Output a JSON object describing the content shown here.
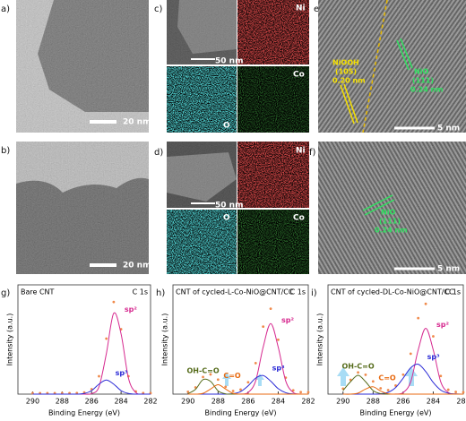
{
  "panels": [
    {
      "label": "a)",
      "scale": "20 nm"
    },
    {
      "label": "b)",
      "scale": "20 nm"
    },
    {
      "label": "c)",
      "scale": "50 nm",
      "maps": [
        "Ni",
        "O",
        "Co"
      ]
    },
    {
      "label": "d)",
      "scale": "50 nm",
      "maps": [
        "Ni",
        "O",
        "Co"
      ]
    },
    {
      "label": "e)",
      "scale": "5 nm",
      "notes": [
        "NiOOH",
        "(105)",
        "0.20 nm",
        "NiO",
        "(111)",
        "0.24 nm"
      ]
    },
    {
      "label": "f)",
      "scale": "5 nm",
      "notes": [
        "NiO",
        "(111)",
        "0.24 nm"
      ]
    }
  ],
  "chart_data": [
    {
      "type": "line",
      "label": "g)",
      "title": "Bare CNT",
      "subtitle": "C 1s",
      "x_label": "Binding Energy (eV)",
      "y_label": "Intensity (a.u.)",
      "xlim": [
        291,
        282
      ],
      "xticks": [
        290,
        288,
        286,
        284,
        282
      ],
      "ylim": [
        0,
        100
      ],
      "x": [
        290,
        289.5,
        289,
        288.5,
        288,
        287.5,
        287,
        286.5,
        286,
        285.5,
        285,
        284.5,
        284,
        283.5,
        283,
        282.5,
        282
      ],
      "series": [
        {
          "color": "#f08a4b",
          "values": [
            1,
            1,
            1,
            1,
            1,
            1,
            1.2,
            1.8,
            5.2,
            19,
            59,
            98,
            69,
            19,
            2.8,
            1.2,
            1
          ]
        },
        {
          "name": "sp²",
          "color": "#d6298f",
          "values": [
            0,
            0,
            0,
            0,
            0,
            0,
            0,
            0,
            0.5,
            7.8,
            43,
            86,
            64,
            17,
            1.7,
            0.1,
            0
          ]
        },
        {
          "name": "sp³",
          "color": "#2b2bd6",
          "values": [
            0,
            0,
            0,
            0,
            0,
            0,
            0,
            0.7,
            3.7,
            10.6,
            15,
            10.6,
            3.7,
            0.7,
            0,
            0,
            0
          ]
        }
      ]
    },
    {
      "type": "line",
      "label": "h)",
      "title": "CNT of cycled-L-Co-NiO@CNT/CC",
      "subtitle": "C 1s",
      "x_label": "Binding Energy (eV)",
      "y_label": "Intensity (a.u.)",
      "xlim": [
        291,
        282
      ],
      "xticks": [
        290,
        288,
        286,
        284,
        282
      ],
      "ylim": [
        0,
        100
      ],
      "x": [
        290,
        289.5,
        289,
        288.5,
        288,
        287.5,
        287,
        286.5,
        286,
        285.5,
        285,
        284.5,
        284,
        283.5,
        283,
        282.5,
        282
      ],
      "series": [
        {
          "color": "#f08a4b",
          "values": [
            2.5,
            7.1,
            18.2,
            21,
            15.5,
            7.7,
            3.3,
            4.8,
            12.6,
            33,
            71.8,
            90.8,
            57.8,
            17.5,
            4,
            2.1,
            2
          ]
        },
        {
          "name": "sp²",
          "color": "#d6298f",
          "values": [
            0,
            0,
            0,
            0,
            0,
            0,
            0,
            0.1,
            1.8,
            14,
            50,
            75,
            50,
            14,
            1.8,
            0.1,
            0
          ]
        },
        {
          "name": "sp³",
          "color": "#2b2bd6",
          "values": [
            0,
            0,
            0,
            0,
            0,
            0,
            0.5,
            2.7,
            8.8,
            17,
            19.8,
            13.8,
            5.8,
            1.5,
            0.2,
            0,
            0
          ]
        },
        {
          "name": "OH-C=O",
          "color": "#556b1a",
          "values": [
            0.5,
            5.1,
            15.4,
            13.6,
            3.5,
            0.3,
            0,
            0,
            0,
            0,
            0,
            0,
            0,
            0,
            0,
            0,
            0
          ]
        },
        {
          "name": "C=O",
          "color": "#e86a10",
          "values": [
            0,
            0,
            0.8,
            5.4,
            10,
            5.4,
            0.8,
            0,
            0,
            0,
            0,
            0,
            0,
            0,
            0,
            0,
            0
          ]
        }
      ]
    },
    {
      "type": "line",
      "label": "i)",
      "title": "CNT of cycled-DL-Co-NiO@CNT/CC",
      "subtitle": "C 1s",
      "x_label": "Binding Energy (eV)",
      "y_label": "Intensity (a.u.)",
      "xlim": [
        291,
        282
      ],
      "xticks": [
        290,
        288,
        286,
        284,
        282
      ],
      "ylim": [
        0,
        100
      ],
      "x": [
        290,
        289.5,
        289,
        288.5,
        288,
        287.5,
        287,
        286.5,
        286,
        285.5,
        285,
        284.5,
        284,
        283.5,
        283,
        282.5,
        282
      ],
      "series": [
        {
          "color": "#f08a4b",
          "values": [
            5.8,
            15.2,
            23.1,
            20.6,
            13.6,
            6.2,
            4.3,
            9.1,
            20.7,
            43,
            80.8,
            96,
            61.4,
            19.3,
            4.7,
            2.3,
            2
          ]
        },
        {
          "name": "sp²",
          "color": "#d6298f",
          "values": [
            0,
            0,
            0,
            0,
            0,
            0,
            0,
            0.1,
            1.7,
            13,
            47,
            70,
            47,
            13,
            1.7,
            0.1,
            0
          ]
        },
        {
          "name": "sp³",
          "color": "#2b2bd6",
          "values": [
            0,
            0,
            0,
            0,
            0,
            0.4,
            1.9,
            7,
            17,
            28,
            31.8,
            24,
            12.4,
            4.3,
            1,
            0.2,
            0
          ]
        },
        {
          "name": "OH-C=O",
          "color": "#556b1a",
          "values": [
            3.8,
            13.2,
            20,
            13.2,
            3.8,
            0.5,
            0,
            0,
            0,
            0,
            0,
            0,
            0,
            0,
            0,
            0,
            0
          ]
        },
        {
          "name": "C=O",
          "color": "#e86a10",
          "values": [
            0,
            0,
            1.1,
            5.4,
            7.8,
            3.3,
            0.4,
            0,
            0,
            0,
            0,
            0,
            0,
            0,
            0,
            0,
            0
          ]
        }
      ]
    }
  ]
}
